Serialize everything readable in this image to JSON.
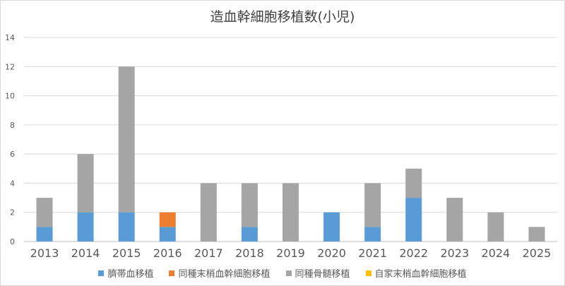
{
  "chart_data": {
    "type": "bar",
    "stacked": true,
    "title": "造血幹細胞移植数(小児)",
    "categories": [
      "2013",
      "2014",
      "2015",
      "2016",
      "2017",
      "2018",
      "2019",
      "2020",
      "2021",
      "2022",
      "2023",
      "2024",
      "2025"
    ],
    "series": [
      {
        "name": "臍帯血移植",
        "color": "#5b9bd5",
        "values": [
          1,
          2,
          2,
          1,
          0,
          1,
          0,
          2,
          1,
          3,
          0,
          0,
          0
        ]
      },
      {
        "name": "同種末梢血幹細胞移植",
        "color": "#ed7d31",
        "values": [
          0,
          0,
          0,
          1,
          0,
          0,
          0,
          0,
          0,
          0,
          0,
          0,
          0
        ]
      },
      {
        "name": "同種骨髄移植",
        "color": "#a5a5a5",
        "values": [
          2,
          4,
          10,
          0,
          4,
          3,
          4,
          0,
          3,
          2,
          3,
          2,
          1
        ]
      },
      {
        "name": "自家末梢血幹細胞移植",
        "color": "#ffc000",
        "values": [
          0,
          0,
          0,
          0,
          0,
          0,
          0,
          0,
          0,
          0,
          0,
          0,
          0
        ]
      }
    ],
    "ylim": [
      0,
      14
    ],
    "yticks": [
      0,
      2,
      4,
      6,
      8,
      10,
      12,
      14
    ],
    "grid": true,
    "legend": "bottom"
  }
}
